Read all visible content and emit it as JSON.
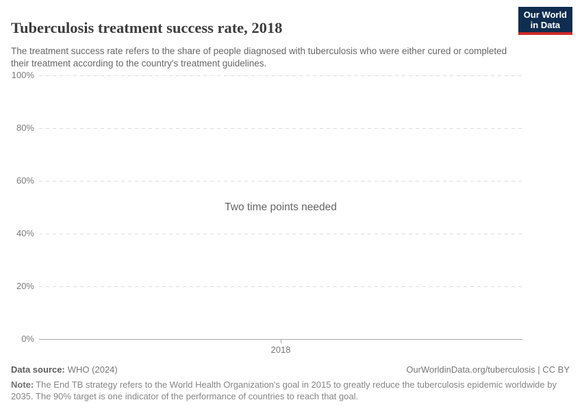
{
  "header": {
    "title": "Tuberculosis treatment success rate, 2018",
    "subtitle": "The treatment success rate refers to the share of people diagnosed with tuberculosis who were either cured or completed their treatment according to the country's treatment guidelines.",
    "logo": {
      "line1": "Our World",
      "line2": "in Data"
    }
  },
  "chart_data": {
    "type": "line",
    "title": "Tuberculosis treatment success rate, 2018",
    "x": [
      2018
    ],
    "x_tick_labels": [
      "2018"
    ],
    "series": [],
    "message": "Two time points needed",
    "ylim": [
      0,
      100
    ],
    "yticks": [
      {
        "value": 0,
        "label": "0%"
      },
      {
        "value": 20,
        "label": "20%"
      },
      {
        "value": 40,
        "label": "40%"
      },
      {
        "value": 60,
        "label": "60%"
      },
      {
        "value": 80,
        "label": "80%"
      },
      {
        "value": 100,
        "label": "100%"
      }
    ],
    "grid": "horizontal-dashed",
    "legend": "none"
  },
  "footer": {
    "data_source_label": "Data source:",
    "data_source_value": "WHO (2024)",
    "attribution": "OurWorldinData.org/tuberculosis | CC BY",
    "note_label": "Note:",
    "note_text": "The End TB strategy refers to the World Health Organization's goal in 2015 to greatly reduce the tuberculosis epidemic worldwide by 2035. The 90% target is one indicator of the performance of countries to reach that goal."
  },
  "colors": {
    "title": "#3d3d3d",
    "subtitle": "#666666",
    "tick_label": "#7a7a7a",
    "gridline": "#dcdcdc",
    "axis_line": "#a5a5a5",
    "logo_background": "#102d50",
    "logo_accent": "#cf2b27",
    "footer_text": "#858585"
  }
}
